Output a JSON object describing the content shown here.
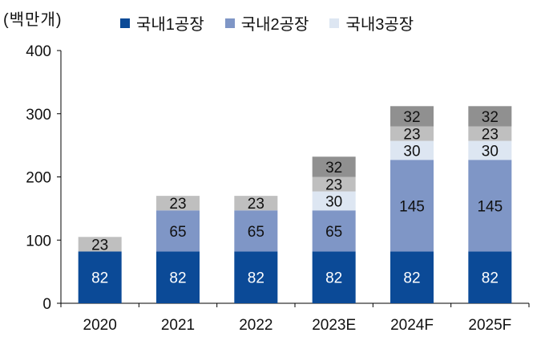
{
  "chart_data": {
    "type": "bar",
    "stacked": true,
    "unit_label": "(백만개)",
    "categories": [
      "2020",
      "2021",
      "2022",
      "2023E",
      "2024F",
      "2025F"
    ],
    "ylim": [
      0,
      400
    ],
    "yticks": [
      "0",
      "100",
      "200",
      "300",
      "400"
    ],
    "grid": false,
    "legend_position": "top",
    "series": [
      {
        "name": "국내1공장",
        "color": "#0b4a97",
        "values": [
          82,
          82,
          82,
          82,
          82,
          82
        ]
      },
      {
        "name": "국내2공장",
        "color": "#7f96c6",
        "values": [
          null,
          65,
          65,
          65,
          145,
          145
        ]
      },
      {
        "name": "국내3공장",
        "color": "#dde6f2",
        "values": [
          null,
          null,
          null,
          30,
          30,
          30
        ]
      },
      {
        "name": "",
        "color": "#bfbfbf",
        "values": [
          23,
          23,
          23,
          23,
          23,
          23
        ]
      },
      {
        "name": "",
        "color": "#909090",
        "values": [
          null,
          null,
          null,
          32,
          32,
          32
        ]
      }
    ],
    "legend": [
      {
        "label": "국내1공장",
        "color": "#0b4a97"
      },
      {
        "label": "국내2공장",
        "color": "#7f96c6"
      },
      {
        "label": "국내3공장",
        "color": "#dde6f2"
      }
    ]
  }
}
